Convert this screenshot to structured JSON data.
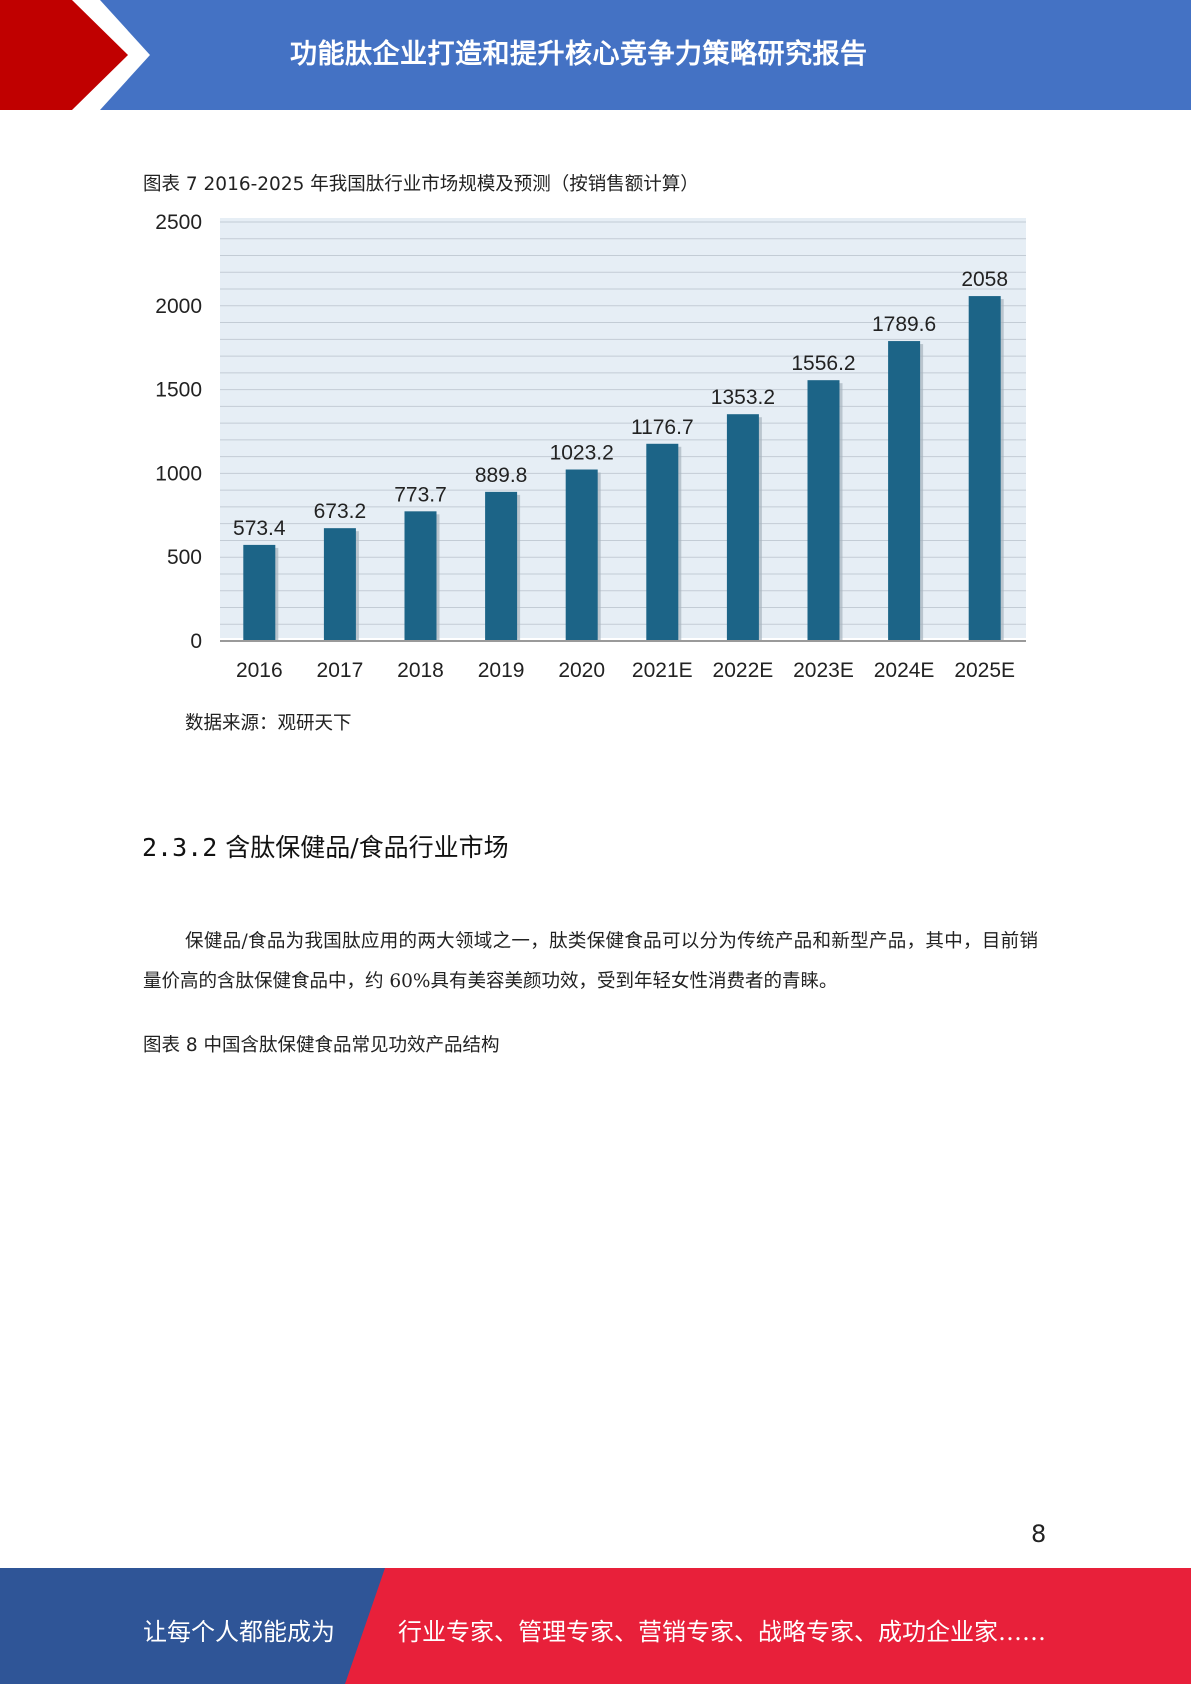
{
  "header": {
    "title": "功能肽企业打造和提升核心竞争力策略研究报告",
    "bg_color": "#4472c4",
    "accent_color": "#c00000"
  },
  "figure7": {
    "caption": "图表 7 2016-2025 年我国肽行业市场规模及预测（按销售额计算）",
    "source": "数据来源：观研天下"
  },
  "chart_data": {
    "type": "bar",
    "categories": [
      "2016",
      "2017",
      "2018",
      "2019",
      "2020",
      "2021E",
      "2022E",
      "2023E",
      "2024E",
      "2025E"
    ],
    "values": [
      573.4,
      673.2,
      773.7,
      889.8,
      1023.2,
      1176.7,
      1353.2,
      1556.2,
      1789.6,
      2058
    ],
    "value_labels": [
      "573.4",
      "673.2",
      "773.7",
      "889.8",
      "1023.2",
      "1176.7",
      "1353.2",
      "1556.2",
      "1789.6",
      "2058"
    ],
    "yticks": [
      "0",
      "500",
      "1000",
      "1500",
      "2000",
      "2500"
    ],
    "ylim": [
      0,
      2500
    ],
    "grid": true,
    "bar_color": "#1c6487",
    "title": "",
    "xlabel": "",
    "ylabel": ""
  },
  "section": {
    "number": "2.3.2",
    "title": "含肽保健品/食品行业市场"
  },
  "paragraph": "保健品/食品为我国肽应用的两大领域之一，肽类保健食品可以分为传统产品和新型产品，其中，目前销量价高的含肽保健食品中，约 60%具有美容美颜功效，受到年轻女性消费者的青睐。",
  "figure8": {
    "caption": "图表 8 中国含肽保健食品常见功效产品结构"
  },
  "page_number": "8",
  "footer": {
    "left_text": "让每个人都能成为",
    "right_text": "行业专家、管理专家、营销专家、战略专家、成功企业家……",
    "left_color": "#2f5597",
    "right_color": "#e8203a"
  }
}
